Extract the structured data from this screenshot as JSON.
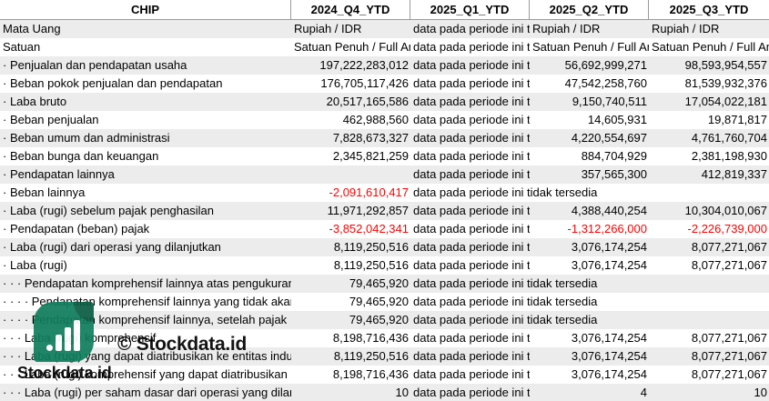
{
  "columns": [
    "CHIP",
    "2024_Q4_YTD",
    "2025_Q1_YTD",
    "2025_Q2_YTD",
    "2025_Q3_YTD"
  ],
  "rows": [
    {
      "label": "Mata Uang",
      "v1": "Rupiah / IDR",
      "v2": "data pada periode ini tidak tersedia",
      "v3": "Rupiah / IDR",
      "v4": "Rupiah / IDR",
      "kind": "text"
    },
    {
      "label": "Satuan",
      "v1": "Satuan Penuh / Full Amount",
      "v2": "data pada periode ini tidak tersedia",
      "v3": "Satuan Penuh / Full Amount",
      "v4": "Satuan Penuh / Full Amount",
      "kind": "text"
    },
    {
      "label": "· Penjualan dan pendapatan usaha",
      "v1": "197,222,283,012",
      "v2": "data pada periode ini tidak tersedia",
      "v3": "56,692,999,271",
      "v4": "98,593,954,557"
    },
    {
      "label": "· Beban pokok penjualan dan pendapatan",
      "v1": "176,705,117,426",
      "v2": "data pada periode ini tidak tersedia",
      "v3": "47,542,258,760",
      "v4": "81,539,932,376"
    },
    {
      "label": "· Laba bruto",
      "v1": "20,517,165,586",
      "v2": "data pada periode ini tidak tersedia",
      "v3": "9,150,740,511",
      "v4": "17,054,022,181"
    },
    {
      "label": "· Beban penjualan",
      "v1": "462,988,560",
      "v2": "data pada periode ini tidak tersedia",
      "v3": "14,605,931",
      "v4": "19,871,817"
    },
    {
      "label": "· Beban umum dan administrasi",
      "v1": "7,828,673,327",
      "v2": "data pada periode ini tidak tersedia",
      "v3": "4,220,554,697",
      "v4": "4,761,760,704"
    },
    {
      "label": "· Beban bunga dan keuangan",
      "v1": "2,345,821,259",
      "v2": "data pada periode ini tidak tersedia",
      "v3": "884,704,929",
      "v4": "2,381,198,930"
    },
    {
      "label": "· Pendapatan lainnya",
      "v1": "",
      "v2": "data pada periode ini tidak tersedia",
      "v3": "357,565,300",
      "v4": "412,819,337"
    },
    {
      "label": "· Beban lainnya",
      "v1": "-2,091,610,417",
      "v1neg": true,
      "v2": "data pada periode ini tidak tersedia",
      "v3": "",
      "v4": "",
      "v2over": true
    },
    {
      "label": "· Laba (rugi) sebelum pajak penghasilan",
      "v1": "11,971,292,857",
      "v2": "data pada periode ini tidak tersedia",
      "v3": "4,388,440,254",
      "v4": "10,304,010,067"
    },
    {
      "label": "· Pendapatan (beban) pajak",
      "v1": "-3,852,042,341",
      "v1neg": true,
      "v2": "data pada periode ini tidak tersedia",
      "v3": "-1,312,266,000",
      "v3neg": true,
      "v4": "-2,226,739,000",
      "v4neg": true
    },
    {
      "label": "· Laba (rugi) dari operasi yang dilanjutkan",
      "v1": "8,119,250,516",
      "v2": "data pada periode ini tidak tersedia",
      "v3": "3,076,174,254",
      "v4": "8,077,271,067"
    },
    {
      "label": "· Laba (rugi)",
      "v1": "8,119,250,516",
      "v2": "data pada periode ini tidak tersedia",
      "v3": "3,076,174,254",
      "v4": "8,077,271,067"
    },
    {
      "label": "· · · Pendapatan komprehensif lainnya atas pengukuran kembali kewajiban imbalan pasti",
      "v1": "79,465,920",
      "v2": "data pada periode ini tidak tersedia",
      "v3": "",
      "v4": "",
      "v2over": true
    },
    {
      "label": "· · · · Pendapatan komprehensif lainnya yang tidak akan direklasifikasi ke laba rugi",
      "v1": "79,465,920",
      "v2": "data pada periode ini tidak tersedia",
      "v3": "",
      "v4": "",
      "v2over": true
    },
    {
      "label": "· · · · Pendapatan komprehensif lainnya, setelah pajak",
      "v1": "79,465,920",
      "v2": "data pada periode ini tidak tersedia",
      "v3": "",
      "v4": "",
      "v2over": true
    },
    {
      "label": "· · · Laba (rugi) komprehensif",
      "v1": "8,198,716,436",
      "v2": "data pada periode ini tidak tersedia",
      "v3": "3,076,174,254",
      "v4": "8,077,271,067"
    },
    {
      "label": "· · · Laba (rugi) yang dapat diatribusikan ke entitas induk",
      "v1": "8,119,250,516",
      "v2": "data pada periode ini tidak tersedia",
      "v3": "3,076,174,254",
      "v4": "8,077,271,067"
    },
    {
      "label": "· · · Laba (rugi) komprehensif yang dapat diatribusikan ke entitas induk",
      "v1": "8,198,716,436",
      "v2": "data pada periode ini tidak tersedia",
      "v3": "3,076,174,254",
      "v4": "8,077,271,067"
    },
    {
      "label": "· · · Laba (rugi) per saham dasar dari operasi yang dilanjutkan",
      "v1": "10",
      "v2": "data pada periode ini tidak tersedia",
      "v3": "4",
      "v4": "10"
    }
  ],
  "watermark": {
    "brand": "© Stockdata.id",
    "brand_small": "Stockdata.id",
    "logo_color": "#0f7d5c"
  },
  "colors": {
    "negative": "#ff0000",
    "alt_row": "#ececec"
  }
}
